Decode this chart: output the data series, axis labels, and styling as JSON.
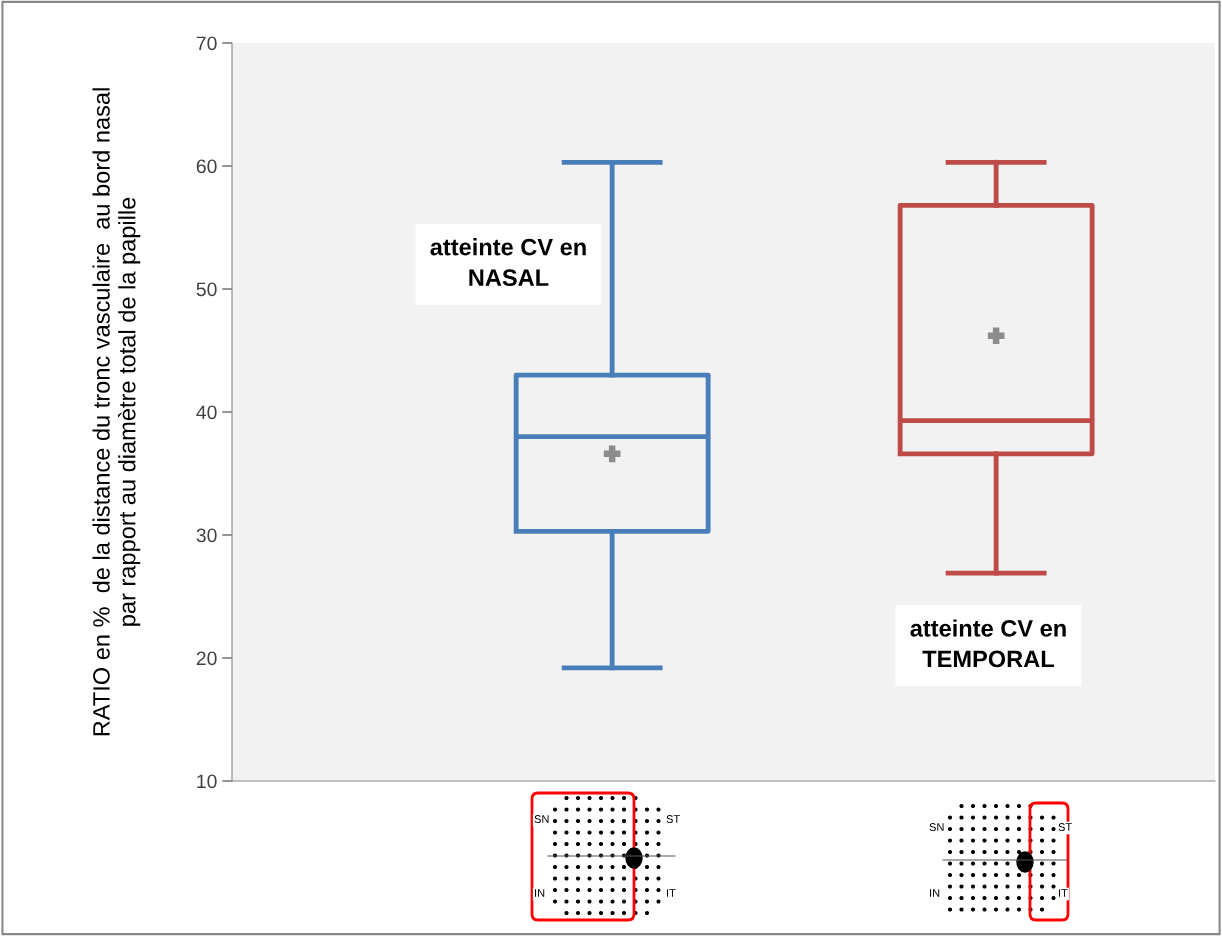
{
  "chart_data": {
    "type": "box",
    "ylabel": "RATIO en %  de la distance du tronc vasculaire  au bord nasal\npar rapport au diamètre total de la papille",
    "categories": [
      null,
      null
    ],
    "series": [
      {
        "color": "#4a7ebb",
        "boxes": [
          {
            "low": 19.2,
            "q1": 30.3,
            "median": 38.0,
            "q3": 43.0,
            "high": 60.3,
            "mean": 36.6
          },
          null
        ]
      },
      {
        "color": "#be4b48",
        "boxes": [
          null,
          {
            "low": 26.9,
            "q1": 36.6,
            "median": 39.3,
            "q3": 56.8,
            "high": 60.3,
            "mean": 46.2
          }
        ]
      }
    ],
    "ylim": [
      10,
      70
    ],
    "yticks": [
      10,
      20,
      30,
      40,
      50,
      60,
      70
    ],
    "tick_labels": "y",
    "grid": false,
    "legend": false,
    "annotations": [
      "atteinte CV en\nNASAL",
      "atteinte CV en\nTEMPORAL",
      "SN",
      "ST",
      "IN",
      "IT",
      "SN",
      "ST",
      "IN",
      "IT"
    ]
  }
}
